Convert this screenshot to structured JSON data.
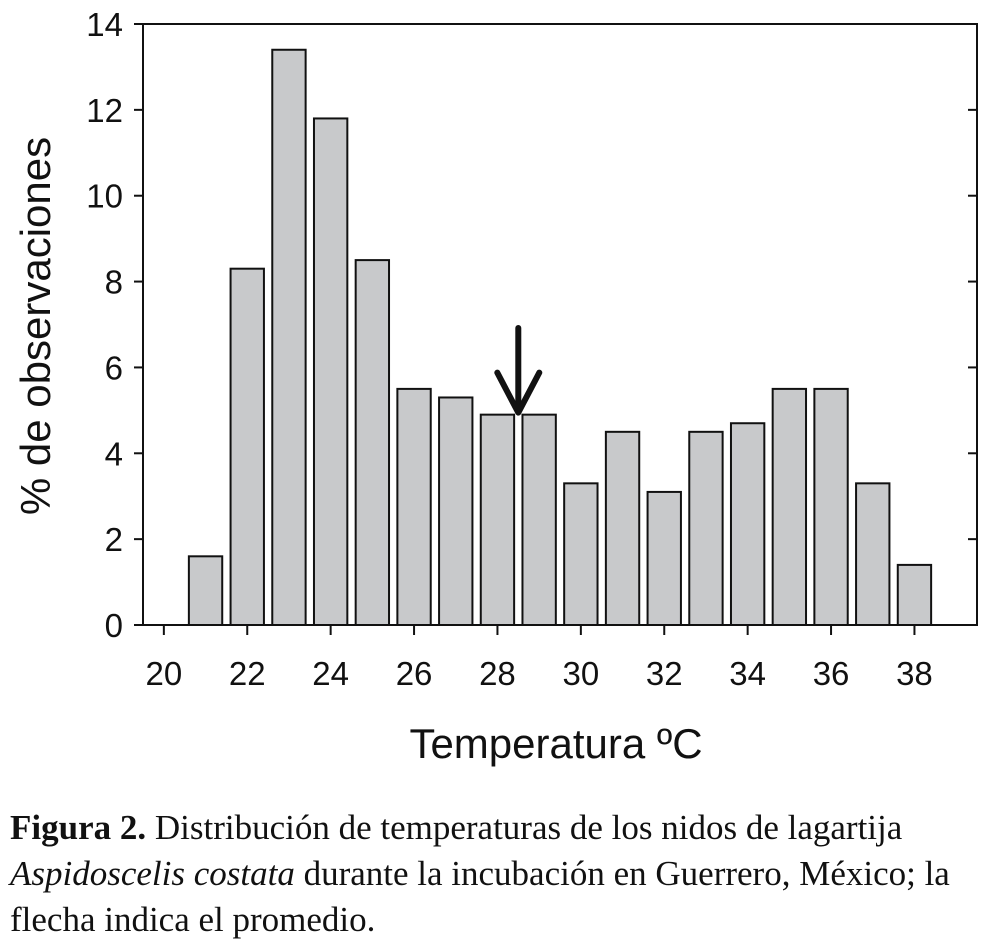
{
  "chart_data": {
    "type": "bar",
    "xlabel": "Temperatura ºC",
    "ylabel": "% de observaciones",
    "xlim": [
      19.5,
      39.5
    ],
    "ylim": [
      0,
      14
    ],
    "x_ticks": [
      "20",
      "22",
      "24",
      "26",
      "28",
      "30",
      "32",
      "34",
      "36",
      "38"
    ],
    "y_ticks": [
      "0",
      "2",
      "4",
      "6",
      "8",
      "10",
      "12",
      "14"
    ],
    "x": [
      21,
      22,
      23,
      24,
      25,
      26,
      27,
      28,
      29,
      30,
      31,
      32,
      33,
      34,
      35,
      36,
      37,
      38
    ],
    "values": [
      1.6,
      8.3,
      13.4,
      11.8,
      8.5,
      5.5,
      5.3,
      4.9,
      4.9,
      3.3,
      4.5,
      3.1,
      4.5,
      4.7,
      5.5,
      5.5,
      3.3,
      1.4
    ],
    "annotation": {
      "type": "arrow-down",
      "x": 28.5,
      "y": 4.9
    },
    "grid": false,
    "bar_color": "#c8c9cb",
    "edge_color": "#111111"
  },
  "caption": {
    "label": "Figura 2.",
    "text1": " Distribución de temperaturas de los nidos de lagartija ",
    "species": "Aspidoscelis costata",
    "text2": " durante la incubación en Guerrero, México; la flecha indica el promedio."
  }
}
